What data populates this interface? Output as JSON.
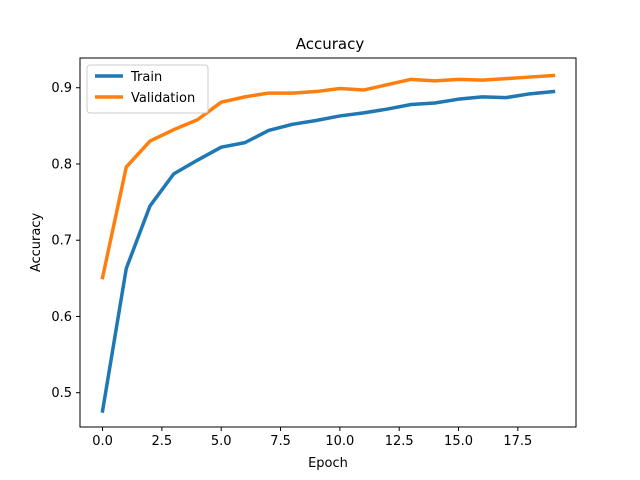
{
  "chart_data": {
    "type": "line",
    "title": "Accuracy",
    "xlabel": "Epoch",
    "ylabel": "Accuracy",
    "x": [
      0,
      1,
      2,
      3,
      4,
      5,
      6,
      7,
      8,
      9,
      10,
      11,
      12,
      13,
      14,
      15,
      16,
      17,
      18,
      19
    ],
    "xlim": [
      -0.95,
      19.95
    ],
    "ylim": [
      0.455,
      0.939
    ],
    "xticks": [
      0.0,
      2.5,
      5.0,
      7.5,
      10.0,
      12.5,
      15.0,
      17.5
    ],
    "xtick_labels": [
      "0.0",
      "2.5",
      "5.0",
      "7.5",
      "10.0",
      "12.5",
      "15.0",
      "17.5"
    ],
    "yticks": [
      0.5,
      0.6,
      0.7,
      0.8,
      0.9
    ],
    "ytick_labels": [
      "0.5",
      "0.6",
      "0.7",
      "0.8",
      "0.9"
    ],
    "grid": false,
    "legend_position": "top-left",
    "series": [
      {
        "name": "Train",
        "color": "#1f77b4",
        "values": [
          0.476,
          0.663,
          0.745,
          0.787,
          0.805,
          0.822,
          0.828,
          0.844,
          0.852,
          0.857,
          0.863,
          0.867,
          0.872,
          0.878,
          0.88,
          0.885,
          0.888,
          0.887,
          0.892,
          0.895
        ]
      },
      {
        "name": "Validation",
        "color": "#ff7f0e",
        "values": [
          0.651,
          0.796,
          0.83,
          0.845,
          0.858,
          0.881,
          0.888,
          0.893,
          0.893,
          0.895,
          0.899,
          0.897,
          0.904,
          0.911,
          0.909,
          0.911,
          0.91,
          0.912,
          0.914,
          0.916
        ]
      }
    ]
  }
}
